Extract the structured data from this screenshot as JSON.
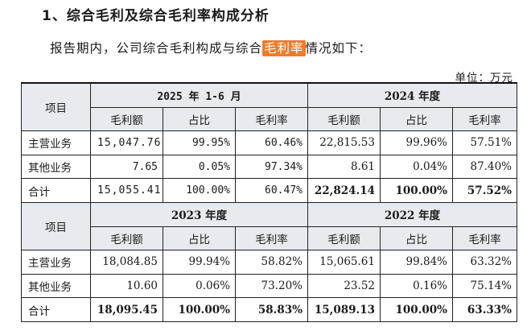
{
  "section_title": "1、综合毛利及综合毛利率构成分析",
  "intro": {
    "before": "报告期内，公司综合毛利构成与综合",
    "highlight": "毛利率",
    "after": "情况如下："
  },
  "unit": "单位：万元",
  "col_labels": {
    "item": "项目",
    "gross_profit": "毛利额",
    "share": "占比",
    "margin": "毛利率"
  },
  "blocks": [
    {
      "periods": [
        "2025 年 1-6 月",
        "2024 年度"
      ],
      "rows": [
        {
          "label": "主营业务",
          "p1": [
            "15,047.76",
            "99.95%",
            "60.46%"
          ],
          "p2": [
            "22,815.53",
            "99.96%",
            "57.51%"
          ]
        },
        {
          "label": "其他业务",
          "p1": [
            "7.65",
            "0.05%",
            "97.34%"
          ],
          "p2": [
            "8.61",
            "0.04%",
            "87.40%"
          ]
        },
        {
          "label": "合计",
          "p1": [
            "15,055.41",
            "100.00%",
            "60.47%"
          ],
          "p2": [
            "22,824.14",
            "100.00%",
            "57.52%"
          ]
        }
      ]
    },
    {
      "periods": [
        "2023 年度",
        "2022 年度"
      ],
      "rows": [
        {
          "label": "主营业务",
          "p1": [
            "18,084.85",
            "99.94%",
            "58.82%"
          ],
          "p2": [
            "15,065.61",
            "99.84%",
            "63.32%"
          ]
        },
        {
          "label": "其他业务",
          "p1": [
            "10.60",
            "0.06%",
            "73.20%"
          ],
          "p2": [
            "23.52",
            "0.16%",
            "75.14%"
          ]
        },
        {
          "label": "合计",
          "p1": [
            "18,095.45",
            "100.00%",
            "58.83%"
          ],
          "p2": [
            "15,089.13",
            "100.00%",
            "63.33%"
          ]
        }
      ]
    }
  ]
}
